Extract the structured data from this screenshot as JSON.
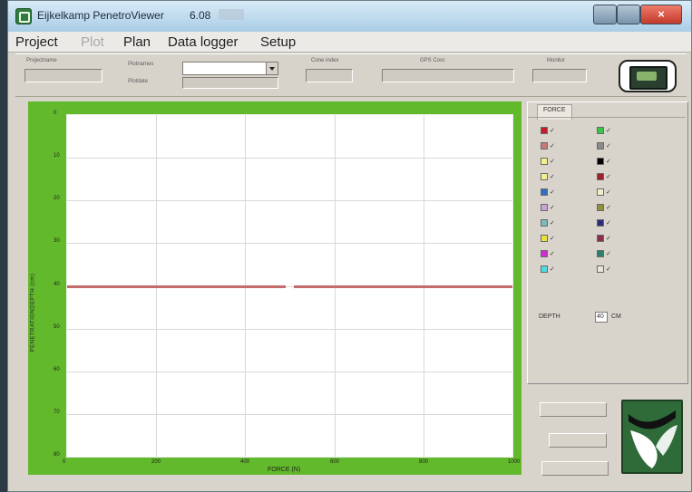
{
  "window": {
    "title": "Eijkelkamp PenetroViewer",
    "version": "6.08"
  },
  "menu": {
    "items": [
      "Project",
      "Plot",
      "Plan",
      "Data logger",
      "Setup"
    ],
    "disabled_index": 1
  },
  "toolbar": {
    "project_label": "Projectname",
    "plot_label": "Plotnames",
    "plotdate_label": "Plotdate",
    "cone_label": "Cone index",
    "gps_label": "GPS Coor.",
    "monitor_label": "Monitor"
  },
  "chart": {
    "yaxis_title": "PENETRATIONDEPTH (cm)",
    "xaxis_title": "FORCE (N)",
    "x_ticks": [
      "0",
      "200",
      "400",
      "600",
      "800",
      "1000"
    ],
    "y_ticks": [
      "0",
      "10",
      "20",
      "30",
      "40",
      "50",
      "60",
      "70",
      "80"
    ]
  },
  "chart_data": {
    "type": "line",
    "title": "",
    "xlabel": "FORCE (N)",
    "ylabel": "PENETRATIONDEPTH (cm)",
    "xlim": [
      0,
      1000
    ],
    "ylim": [
      80,
      0
    ],
    "series": [
      {
        "values": [
          40,
          40,
          40,
          40,
          40,
          40
        ],
        "x": [
          0,
          200,
          400,
          600,
          800,
          1000
        ]
      }
    ]
  },
  "legend_panel": {
    "tab_label": "FORCE",
    "depth_label": "DEPTH",
    "depth_value": "40",
    "depth_unit": "CM",
    "left_colors": [
      "#c21d2a",
      "#c87a7a",
      "#f4f08e",
      "#f4f08e",
      "#2e6fbf",
      "#c9a3d8",
      "#7fb9b9",
      "#e8e23a",
      "#cf2ed0",
      "#4fdbe2"
    ],
    "right_colors": [
      "#3ac34a",
      "#8c8c8c",
      "#000000",
      "#9c1f2a",
      "#eef0c8",
      "#8f8f3c",
      "#2d2b7a",
      "#8c2d4a",
      "#2f7d6f",
      "#e9e4dc"
    ]
  },
  "buttons": {
    "top_label": "",
    "middle_label": "",
    "bottom_label": ""
  }
}
